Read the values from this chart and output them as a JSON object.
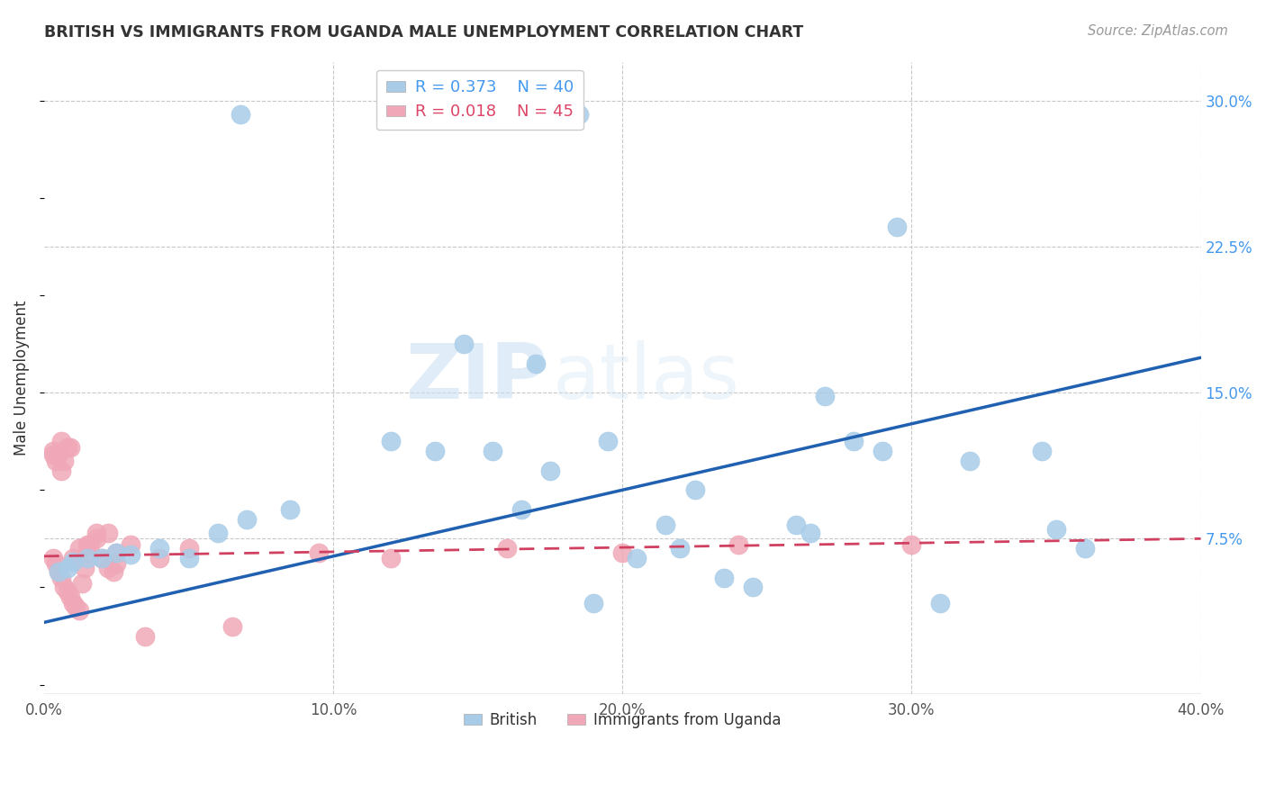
{
  "title": "BRITISH VS IMMIGRANTS FROM UGANDA MALE UNEMPLOYMENT CORRELATION CHART",
  "source": "Source: ZipAtlas.com",
  "ylabel": "Male Unemployment",
  "xlim": [
    0.0,
    0.4
  ],
  "ylim": [
    -0.005,
    0.32
  ],
  "yticks_right": [
    0.075,
    0.15,
    0.225,
    0.3
  ],
  "yticklabels_right": [
    "7.5%",
    "15.0%",
    "22.5%",
    "30.0%"
  ],
  "grid_color": "#c8c8c8",
  "background_color": "#ffffff",
  "watermark_zip": "ZIP",
  "watermark_atlas": "atlas",
  "legend_R1": "R = 0.373",
  "legend_N1": "N = 40",
  "legend_R2": "R = 0.018",
  "legend_N2": "N = 45",
  "british_color": "#a8cce8",
  "uganda_color": "#f0a8b8",
  "british_line_color": "#2060b0",
  "uganda_line_color": "#d04060",
  "british_x": [
    0.068,
    0.185,
    0.145,
    0.17,
    0.295,
    0.12,
    0.135,
    0.085,
    0.07,
    0.06,
    0.04,
    0.025,
    0.015,
    0.01,
    0.005,
    0.008,
    0.02,
    0.03,
    0.05,
    0.195,
    0.215,
    0.225,
    0.155,
    0.165,
    0.175,
    0.26,
    0.265,
    0.28,
    0.29,
    0.32,
    0.345,
    0.27,
    0.35,
    0.36,
    0.205,
    0.22,
    0.235,
    0.245,
    0.31,
    0.19
  ],
  "british_y": [
    0.293,
    0.293,
    0.175,
    0.165,
    0.235,
    0.125,
    0.12,
    0.09,
    0.085,
    0.078,
    0.07,
    0.068,
    0.065,
    0.063,
    0.058,
    0.06,
    0.065,
    0.067,
    0.065,
    0.125,
    0.082,
    0.1,
    0.12,
    0.09,
    0.11,
    0.082,
    0.078,
    0.125,
    0.12,
    0.115,
    0.12,
    0.148,
    0.08,
    0.07,
    0.065,
    0.07,
    0.055,
    0.05,
    0.042,
    0.042
  ],
  "uganda_x": [
    0.003,
    0.004,
    0.005,
    0.006,
    0.007,
    0.008,
    0.009,
    0.01,
    0.011,
    0.012,
    0.013,
    0.014,
    0.015,
    0.016,
    0.018,
    0.02,
    0.022,
    0.024,
    0.003,
    0.005,
    0.007,
    0.009,
    0.006,
    0.008,
    0.003,
    0.004,
    0.006,
    0.01,
    0.012,
    0.015,
    0.018,
    0.022,
    0.025,
    0.03,
    0.035,
    0.04,
    0.05,
    0.065,
    0.095,
    0.12,
    0.16,
    0.2,
    0.24,
    0.3,
    0.025
  ],
  "uganda_y": [
    0.065,
    0.062,
    0.058,
    0.055,
    0.05,
    0.048,
    0.045,
    0.042,
    0.04,
    0.038,
    0.052,
    0.06,
    0.068,
    0.072,
    0.078,
    0.065,
    0.06,
    0.058,
    0.12,
    0.118,
    0.115,
    0.122,
    0.125,
    0.122,
    0.118,
    0.115,
    0.11,
    0.065,
    0.07,
    0.072,
    0.075,
    0.078,
    0.068,
    0.072,
    0.025,
    0.065,
    0.07,
    0.03,
    0.068,
    0.065,
    0.07,
    0.068,
    0.072,
    0.072,
    0.062
  ],
  "brit_line_x0": 0.0,
  "brit_line_y0": 0.032,
  "brit_line_x1": 0.4,
  "brit_line_y1": 0.168,
  "uga_line_x0": 0.0,
  "uga_line_y0": 0.066,
  "uga_line_x1": 0.4,
  "uga_line_y1": 0.075
}
